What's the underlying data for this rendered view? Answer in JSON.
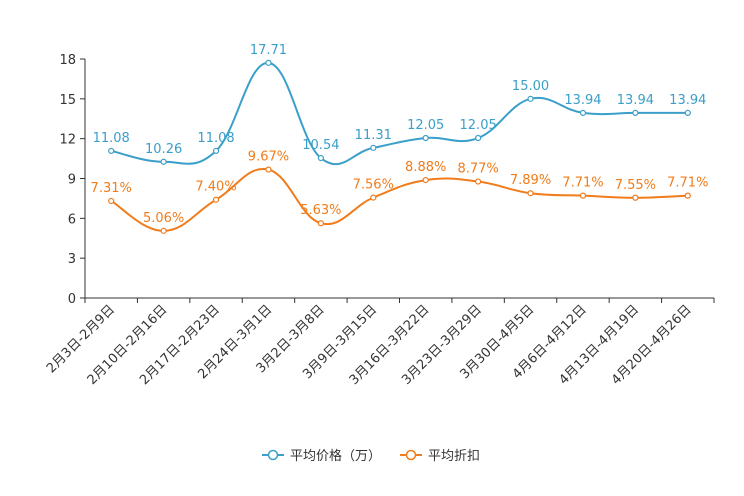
{
  "chart_data": {
    "type": "line",
    "categories": [
      "2月3日-2月9日",
      "2月10日-2月16日",
      "2月17日-2月23日",
      "2月24日-3月1日",
      "3月2日-3月8日",
      "3月9日-3月15日",
      "3月16日-3月22日",
      "3月23日-3月29日",
      "3月30日-4月5日",
      "4月6日-4月12日",
      "4月13日-4月19日",
      "4月20日-4月26日"
    ],
    "ylim": [
      0,
      18
    ],
    "yticks": [
      0,
      3,
      6,
      9,
      12,
      15,
      18
    ],
    "series": [
      {
        "name": "平均价格（万）",
        "color": "#3a9fc9",
        "values": [
          11.08,
          10.26,
          11.08,
          17.71,
          10.54,
          11.31,
          12.05,
          12.05,
          15.0,
          13.94,
          13.94,
          13.94
        ],
        "labels": [
          "11.08",
          "10.26",
          "11.08",
          "17.71",
          "10.54",
          "11.31",
          "12.05",
          "12.05",
          "15.00",
          "13.94",
          "13.94",
          "13.94"
        ]
      },
      {
        "name": "平均折扣",
        "color": "#f07c1c",
        "values": [
          7.31,
          5.06,
          7.4,
          9.67,
          5.63,
          7.56,
          8.88,
          8.77,
          7.89,
          7.71,
          7.55,
          7.71
        ],
        "labels": [
          "7.31%",
          "5.06%",
          "7.40%",
          "9.67%",
          "5.63%",
          "7.56%",
          "8.88%",
          "8.77%",
          "7.89%",
          "7.71%",
          "7.55%",
          "7.71%"
        ]
      }
    ],
    "legend_position": "bottom-center"
  }
}
